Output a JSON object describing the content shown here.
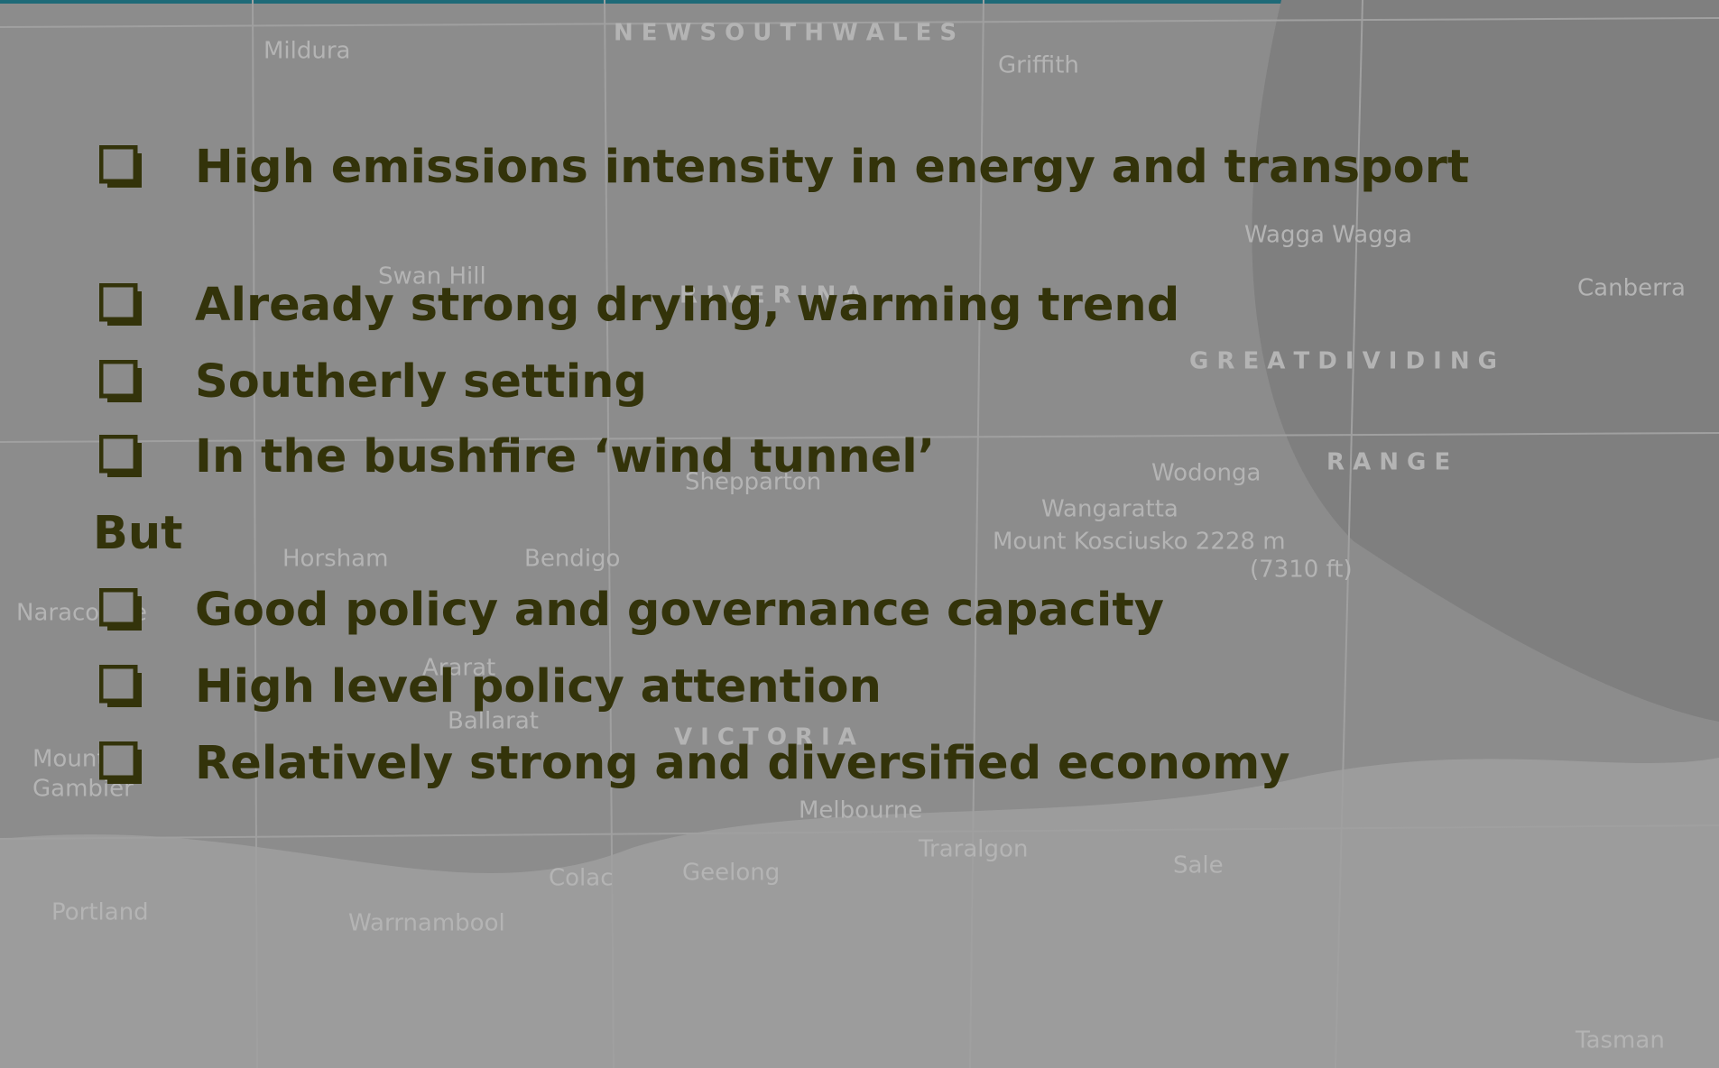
{
  "map": {
    "labels": [
      "N E W   S O U T H   W A L E S",
      "Mildura",
      "Griffith",
      "Wagga Wagga",
      "Canberra",
      "Swan Hill",
      "R I V E R I N A",
      "G R E A T   D I V I D I N G",
      "R A N G E",
      "Wodonga",
      "Wangaratta",
      "Shepparton",
      "Mount Kosciusko 2228 m",
      "(7310 ft)",
      "Horsham",
      "Bendigo",
      "Naracoorte",
      "Ararat",
      "Ballarat",
      "V I C T O R I A",
      "Mount",
      "Gambier",
      "Melbourne",
      "Colac",
      "Geelong",
      "Traralgon",
      "Sale",
      "Portland",
      "Warrnambool",
      "Tasman"
    ]
  },
  "bullets_top": [
    "High emissions intensity in energy and transport",
    "Already strong drying, warming trend",
    "Southerly setting",
    "In the bushfire ‘wind tunnel’"
  ],
  "connector": "But",
  "bullets_bottom": [
    "Good policy and governance capacity",
    "High level policy attention",
    "Relatively strong and diversified economy"
  ]
}
